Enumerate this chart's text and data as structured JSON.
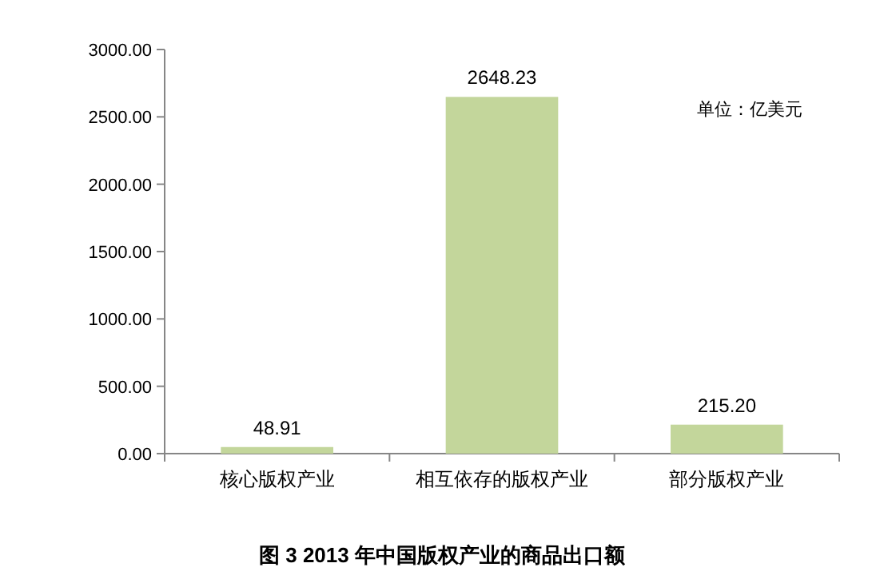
{
  "chart_data": {
    "type": "bar",
    "title": "图 3 2013 年中国版权产业的商品出口额",
    "categories": [
      "核心版权产业",
      "相互依存的版权产业",
      "部分版权产业"
    ],
    "values": [
      48.91,
      2648.23,
      215.2
    ],
    "color": "#c3d69b",
    "value_labels": [
      "48.91",
      "2648.23",
      "215.20"
    ],
    "ylim": [
      0,
      3000
    ],
    "yticks": [
      {
        "value": 0,
        "label": "0.00"
      },
      {
        "value": 500,
        "label": "500.00"
      },
      {
        "value": 1000,
        "label": "1000.00"
      },
      {
        "value": 1500,
        "label": "1500.00"
      },
      {
        "value": 2000,
        "label": "2000.00"
      },
      {
        "value": 2500,
        "label": "2500.00"
      },
      {
        "value": 3000,
        "label": "3000.00"
      }
    ],
    "annotations": [
      "单位：亿美元"
    ],
    "grid": false
  }
}
